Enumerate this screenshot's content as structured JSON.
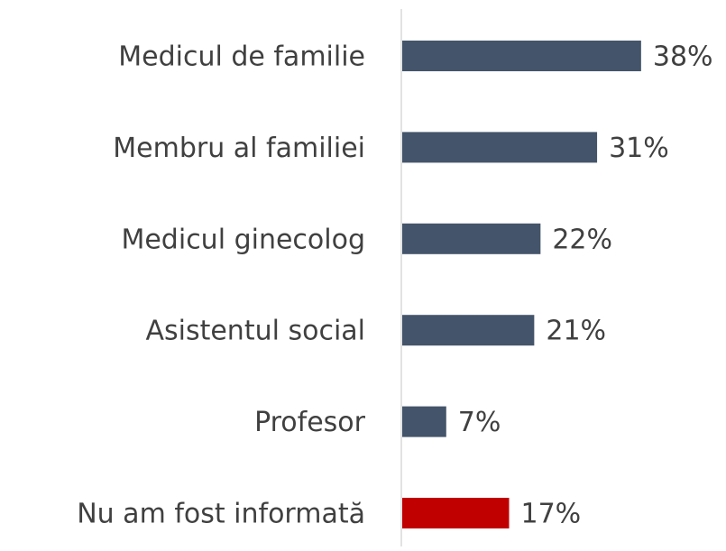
{
  "chart_data": {
    "type": "bar",
    "orientation": "horizontal",
    "categories": [
      "Medicul de familie",
      "Membru al familiei",
      "Medicul ginecolog",
      "Asistentul social",
      "Profesor",
      "Nu am fost informată"
    ],
    "values": [
      38,
      31,
      22,
      21,
      7,
      17
    ],
    "value_labels": [
      "38%",
      "31%",
      "22%",
      "21%",
      "7%",
      "17%"
    ],
    "colors": [
      "#44546a",
      "#44546a",
      "#44546a",
      "#44546a",
      "#44546a",
      "#c00000"
    ]
  }
}
